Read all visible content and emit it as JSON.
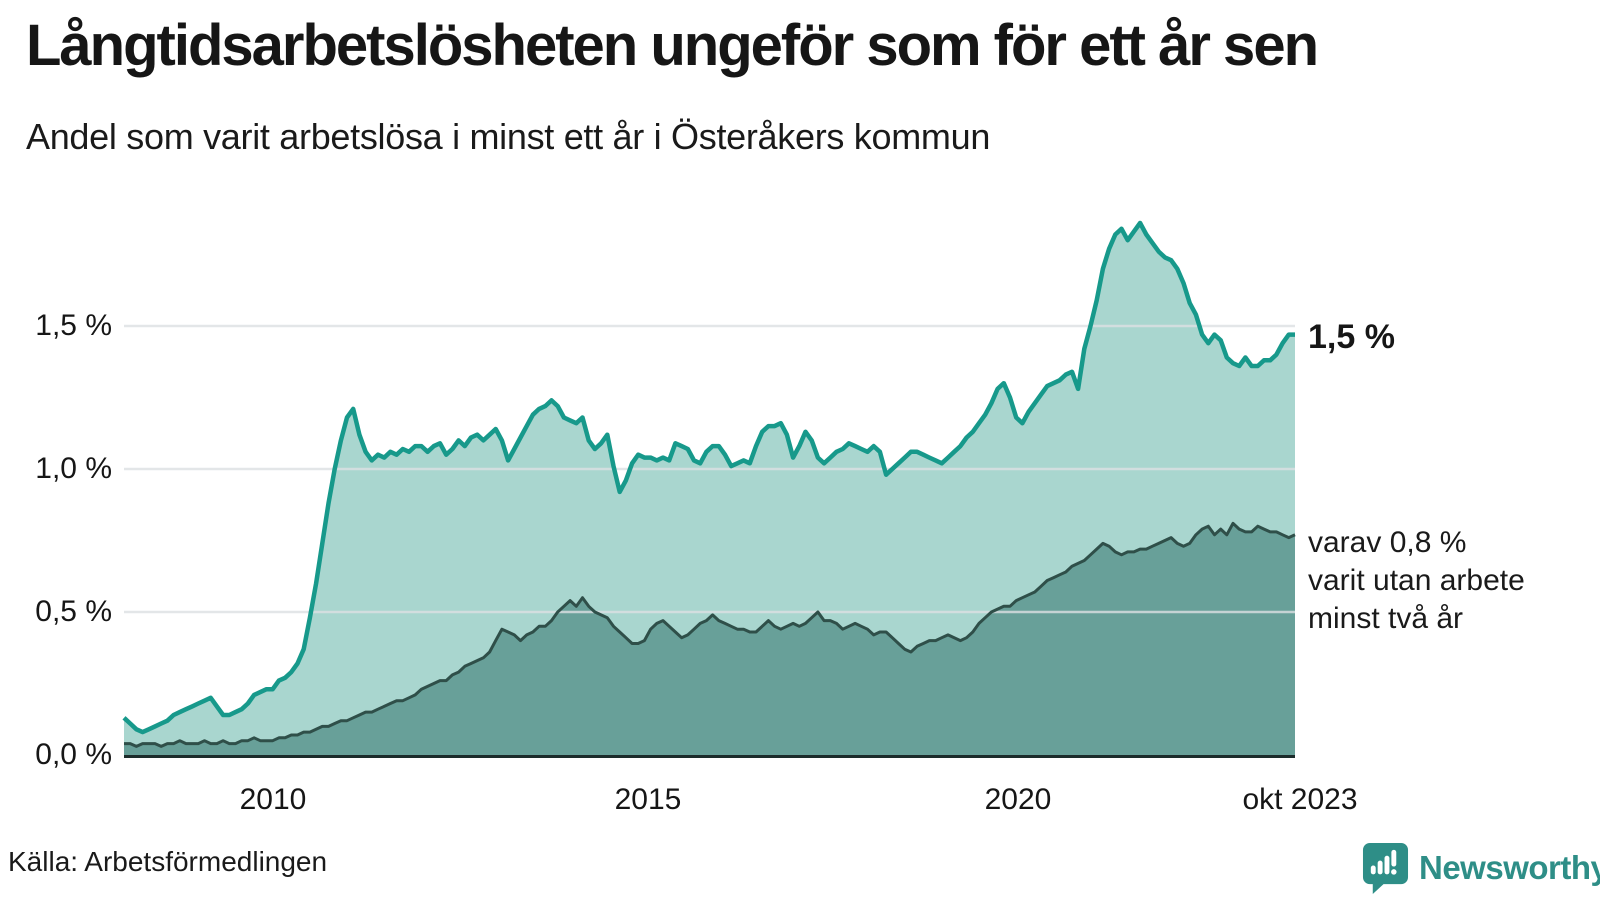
{
  "header": {
    "title": "Långtidsarbetslösheten ungeför som för ett år sen",
    "subtitle": "Andel som varit arbetslösa i minst ett år i Österåkers kommun"
  },
  "annotations": {
    "end_value": "1,5 %",
    "note_line1": "varav 0,8 %",
    "note_line2": "varit utan arbete",
    "note_line3": "minst två år"
  },
  "footer": {
    "source": "Källa: Arbetsförmedlingen",
    "logo_text": "Newsworthy"
  },
  "colors": {
    "line_one_year": "#17998b",
    "fill_one_year": "#a9d6cf",
    "line_two_year": "#2f4f49",
    "fill_two_year": "#68a099",
    "gridline": "#dce0e2",
    "axis_line": "#1c2c2b",
    "logo_teal": "#2e8e87",
    "text": "#1a1a1a"
  },
  "chart_data": {
    "type": "area",
    "title": "Långtidsarbetslösheten ungeför som för ett år sen",
    "subtitle": "Andel som varit arbetslösa i minst ett år i Österåkers kommun",
    "unit": "%",
    "x_start": "2008-01",
    "x_end": "2023-10",
    "x_frequency": "monthly",
    "ylim": [
      0,
      2.0
    ],
    "grid": true,
    "y_ticks": [
      {
        "label": "1,5 %",
        "value": 1.5
      },
      {
        "label": "1,0 %",
        "value": 1.0
      },
      {
        "label": "0,5 %",
        "value": 0.5
      },
      {
        "label": "0,0 %",
        "value": 0.0
      }
    ],
    "x_ticks": [
      {
        "label": "2010",
        "x": "2010-01"
      },
      {
        "label": "2015",
        "x": "2015-01"
      },
      {
        "label": "2020",
        "x": "2020-01"
      },
      {
        "label": "okt 2023",
        "x": "2023-10"
      }
    ],
    "series": [
      {
        "name": "Andel arbetslösa minst ett år",
        "end_label": "1,5 %",
        "last_value": 1.5,
        "values": [
          0.13,
          0.11,
          0.09,
          0.08,
          0.09,
          0.1,
          0.11,
          0.12,
          0.14,
          0.15,
          0.16,
          0.17,
          0.18,
          0.19,
          0.2,
          0.17,
          0.14,
          0.14,
          0.15,
          0.16,
          0.18,
          0.21,
          0.22,
          0.23,
          0.23,
          0.26,
          0.27,
          0.29,
          0.32,
          0.37,
          0.48,
          0.6,
          0.74,
          0.88,
          1.0,
          1.1,
          1.18,
          1.21,
          1.12,
          1.06,
          1.03,
          1.05,
          1.04,
          1.06,
          1.05,
          1.07,
          1.06,
          1.08,
          1.08,
          1.06,
          1.08,
          1.09,
          1.05,
          1.07,
          1.1,
          1.08,
          1.11,
          1.12,
          1.1,
          1.12,
          1.14,
          1.1,
          1.03,
          1.07,
          1.11,
          1.15,
          1.19,
          1.21,
          1.22,
          1.24,
          1.22,
          1.18,
          1.17,
          1.16,
          1.18,
          1.1,
          1.07,
          1.09,
          1.12,
          1.01,
          0.92,
          0.96,
          1.02,
          1.05,
          1.04,
          1.04,
          1.03,
          1.04,
          1.03,
          1.09,
          1.08,
          1.07,
          1.03,
          1.02,
          1.06,
          1.08,
          1.08,
          1.05,
          1.01,
          1.02,
          1.03,
          1.02,
          1.08,
          1.13,
          1.15,
          1.15,
          1.16,
          1.12,
          1.04,
          1.08,
          1.13,
          1.1,
          1.04,
          1.02,
          1.04,
          1.06,
          1.07,
          1.09,
          1.08,
          1.07,
          1.06,
          1.08,
          1.06,
          0.98,
          1.0,
          1.02,
          1.04,
          1.06,
          1.06,
          1.05,
          1.04,
          1.03,
          1.02,
          1.04,
          1.06,
          1.08,
          1.11,
          1.13,
          1.16,
          1.19,
          1.23,
          1.28,
          1.3,
          1.25,
          1.18,
          1.16,
          1.2,
          1.23,
          1.26,
          1.29,
          1.3,
          1.31,
          1.33,
          1.34,
          1.28,
          1.42,
          1.5,
          1.59,
          1.7,
          1.77,
          1.82,
          1.84,
          1.8,
          1.83,
          1.86,
          1.82,
          1.79,
          1.76,
          1.74,
          1.73,
          1.7,
          1.65,
          1.58,
          1.54,
          1.47,
          1.44,
          1.47,
          1.45,
          1.39,
          1.37,
          1.36,
          1.39,
          1.36,
          1.36,
          1.38,
          1.38,
          1.4,
          1.44,
          1.47,
          1.47
        ]
      },
      {
        "name": "varav varit utan arbete minst två år",
        "end_label": "varav 0,8 % varit utan arbete minst två år",
        "last_value": 0.8,
        "values": [
          0.04,
          0.04,
          0.03,
          0.04,
          0.04,
          0.04,
          0.03,
          0.04,
          0.04,
          0.05,
          0.04,
          0.04,
          0.04,
          0.05,
          0.04,
          0.04,
          0.05,
          0.04,
          0.04,
          0.05,
          0.05,
          0.06,
          0.05,
          0.05,
          0.05,
          0.06,
          0.06,
          0.07,
          0.07,
          0.08,
          0.08,
          0.09,
          0.1,
          0.1,
          0.11,
          0.12,
          0.12,
          0.13,
          0.14,
          0.15,
          0.15,
          0.16,
          0.17,
          0.18,
          0.19,
          0.19,
          0.2,
          0.21,
          0.23,
          0.24,
          0.25,
          0.26,
          0.26,
          0.28,
          0.29,
          0.31,
          0.32,
          0.33,
          0.34,
          0.36,
          0.4,
          0.44,
          0.43,
          0.42,
          0.4,
          0.42,
          0.43,
          0.45,
          0.45,
          0.47,
          0.5,
          0.52,
          0.54,
          0.52,
          0.55,
          0.52,
          0.5,
          0.49,
          0.48,
          0.45,
          0.43,
          0.41,
          0.39,
          0.39,
          0.4,
          0.44,
          0.46,
          0.47,
          0.45,
          0.43,
          0.41,
          0.42,
          0.44,
          0.46,
          0.47,
          0.49,
          0.47,
          0.46,
          0.45,
          0.44,
          0.44,
          0.43,
          0.43,
          0.45,
          0.47,
          0.45,
          0.44,
          0.45,
          0.46,
          0.45,
          0.46,
          0.48,
          0.5,
          0.47,
          0.47,
          0.46,
          0.44,
          0.45,
          0.46,
          0.45,
          0.44,
          0.42,
          0.43,
          0.43,
          0.41,
          0.39,
          0.37,
          0.36,
          0.38,
          0.39,
          0.4,
          0.4,
          0.41,
          0.42,
          0.41,
          0.4,
          0.41,
          0.43,
          0.46,
          0.48,
          0.5,
          0.51,
          0.52,
          0.52,
          0.54,
          0.55,
          0.56,
          0.57,
          0.59,
          0.61,
          0.62,
          0.63,
          0.64,
          0.66,
          0.67,
          0.68,
          0.7,
          0.72,
          0.74,
          0.73,
          0.71,
          0.7,
          0.71,
          0.71,
          0.72,
          0.72,
          0.73,
          0.74,
          0.75,
          0.76,
          0.74,
          0.73,
          0.74,
          0.77,
          0.79,
          0.8,
          0.77,
          0.79,
          0.77,
          0.81,
          0.79,
          0.78,
          0.78,
          0.8,
          0.79,
          0.78,
          0.78,
          0.77,
          0.76,
          0.77
        ]
      }
    ],
    "legend_position": "right-annotations",
    "source": "Källa: Arbetsförmedlingen"
  }
}
